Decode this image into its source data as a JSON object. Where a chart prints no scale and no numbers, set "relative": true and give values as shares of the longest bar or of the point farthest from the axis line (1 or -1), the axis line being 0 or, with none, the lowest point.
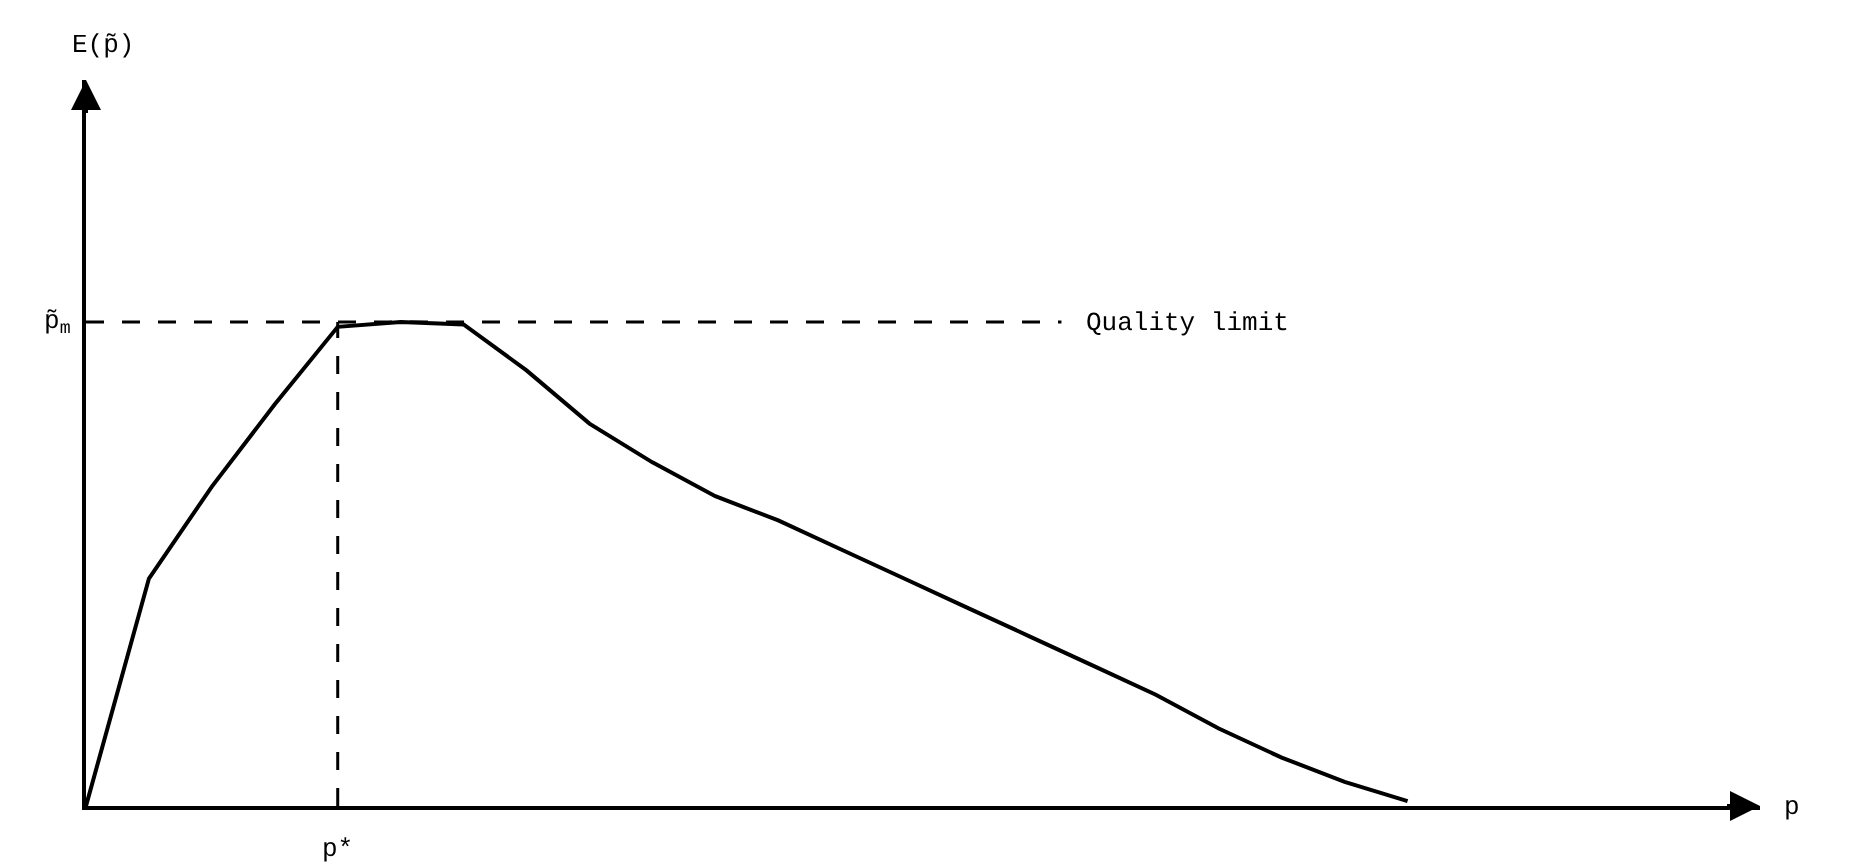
{
  "chart_data": {
    "type": "line",
    "relative": true,
    "categories": [
      null,
      null,
      null,
      null,
      null,
      null,
      null,
      null,
      null,
      null,
      null,
      null,
      null,
      null,
      null,
      null,
      null,
      null,
      null,
      null,
      null,
      null
    ],
    "series": [
      {
        "color": "#000000",
        "values": [
          0,
          0.47,
          0.66,
          0.83,
          0.99,
          1.0,
          0.995,
          0.9,
          0.79,
          0.71,
          0.64,
          0.59,
          0.53,
          0.47,
          0.41,
          0.35,
          0.29,
          0.23,
          0.16,
          0.1,
          0.05,
          0.01
        ]
      }
    ],
    "ref_lines": [
      {
        "axis": "y",
        "value": 1,
        "label": "p̃$_{m}$",
        "line_style": "dashed",
        "color": "#000000"
      }
    ],
    "annotations": [
      "Quality limit",
      "E(p̃)",
      "p",
      "p*"
    ],
    "marker": "none",
    "line_style": "solid"
  }
}
